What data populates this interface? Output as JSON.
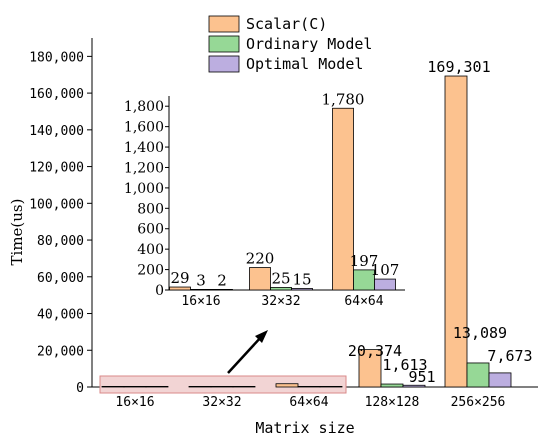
{
  "chart_data": [
    {
      "type": "bar",
      "xlabel": "Matrix size",
      "ylabel": "Time(us)",
      "ylim": [
        0,
        190000
      ],
      "yticks": [
        0,
        20000,
        40000,
        60000,
        80000,
        100000,
        120000,
        140000,
        160000,
        180000
      ],
      "ytick_labels": [
        "0",
        "20,000",
        "40,000",
        "60,000",
        "80,000",
        "100,000",
        "120,000",
        "140,000",
        "160,000",
        "180,000"
      ],
      "categories": [
        "16×16",
        "32×32",
        "64×64",
        "128×128",
        "256×256"
      ],
      "series": [
        {
          "name": "Scalar(C)",
          "color": "#fcc28f",
          "values": [
            29,
            220,
            1780,
            20374,
            169301
          ],
          "labels": [
            "",
            "",
            "",
            "20,374",
            "169,301"
          ]
        },
        {
          "name": "Ordinary Model",
          "color": "#96d896",
          "values": [
            3,
            25,
            197,
            1613,
            13089
          ],
          "labels": [
            "",
            "",
            "",
            "1,613",
            "13,089"
          ]
        },
        {
          "name": "Optimal Model",
          "color": "#bcaee0",
          "values": [
            2,
            15,
            107,
            951,
            7673
          ],
          "labels": [
            "",
            "",
            "",
            "951",
            "7,673"
          ]
        }
      ],
      "legend": "top-right",
      "grid": false,
      "highlight": {
        "from_category": 0,
        "to_category": 2,
        "fill": "#f2d4d4",
        "stroke": "#d98a8a"
      }
    },
    {
      "type": "bar",
      "role": "inset",
      "ylim": [
        0,
        1900
      ],
      "yticks": [
        0,
        200,
        400,
        600,
        800,
        1000,
        1200,
        1400,
        1600,
        1800
      ],
      "ytick_labels": [
        "0",
        "200",
        "400",
        "600",
        "800",
        "1,000",
        "1,200",
        "1,400",
        "1,600",
        "1,800"
      ],
      "categories": [
        "16×16",
        "32×32",
        "64×64"
      ],
      "series": [
        {
          "name": "Scalar(C)",
          "color": "#fcc28f",
          "values": [
            29,
            220,
            1780
          ],
          "labels": [
            "29",
            "220",
            "1,780"
          ]
        },
        {
          "name": "Ordinary Model",
          "color": "#96d896",
          "values": [
            3,
            25,
            197
          ],
          "labels": [
            "3",
            "25",
            "197"
          ]
        },
        {
          "name": "Optimal Model",
          "color": "#bcaee0",
          "values": [
            2,
            15,
            107
          ],
          "labels": [
            "2",
            "15",
            "107"
          ]
        }
      ],
      "grid": false
    }
  ]
}
